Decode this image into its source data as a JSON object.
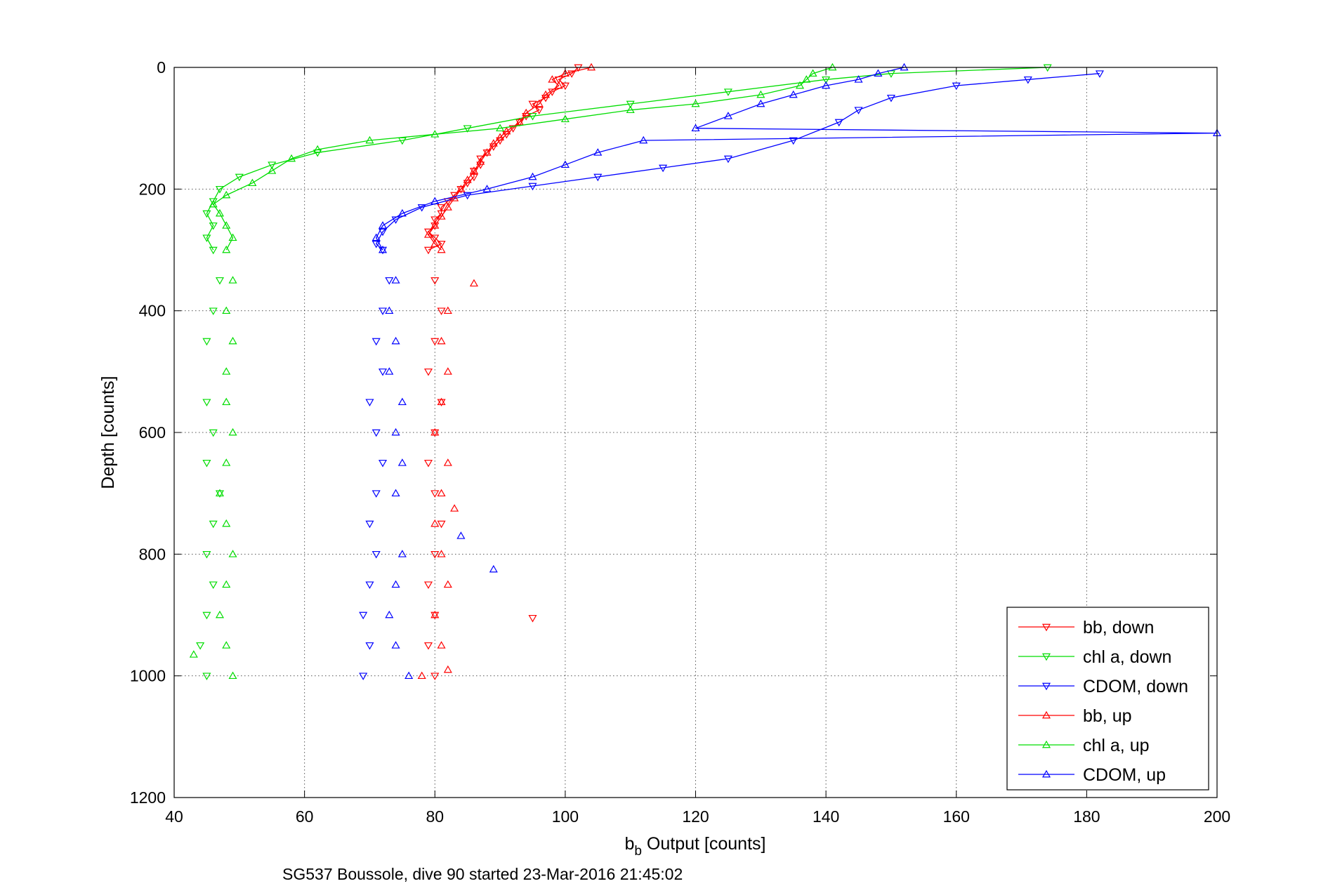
{
  "chart_data": {
    "type": "scatter",
    "xlabel": "b",
    "xlabel_sub": "b",
    "xlabel_rest": " Output [counts]",
    "ylabel": "Depth [counts]",
    "caption": "SG537 Boussole, dive 90 started 23-Mar-2016 21:45:02",
    "xlim": [
      40,
      200
    ],
    "ylim": [
      0,
      1200
    ],
    "y_reversed": true,
    "grid": true,
    "legend_position": "bottom-right",
    "x_ticks": [
      "40",
      "60",
      "80",
      "100",
      "120",
      "140",
      "160",
      "180",
      "200"
    ],
    "y_ticks": [
      "0",
      "200",
      "400",
      "600",
      "800",
      "1000",
      "1200"
    ],
    "series": [
      {
        "name": "bb, down",
        "color": "#ff0000",
        "marker": "triangle-down",
        "points": [
          [
            102,
            0
          ],
          [
            101,
            10
          ],
          [
            99,
            20
          ],
          [
            100,
            30
          ],
          [
            98,
            40
          ],
          [
            97,
            50
          ],
          [
            95,
            60
          ],
          [
            96,
            70
          ],
          [
            94,
            80
          ],
          [
            93,
            90
          ],
          [
            92,
            100
          ],
          [
            91,
            110
          ],
          [
            90,
            120
          ],
          [
            89,
            130
          ],
          [
            88,
            140
          ],
          [
            87,
            150
          ],
          [
            87,
            160
          ],
          [
            86,
            170
          ],
          [
            86,
            180
          ],
          [
            85,
            190
          ],
          [
            84,
            200
          ],
          [
            83,
            210
          ],
          [
            82,
            220
          ],
          [
            81,
            230
          ],
          [
            81,
            240
          ],
          [
            80,
            250
          ],
          [
            80,
            260
          ],
          [
            79,
            270
          ],
          [
            80,
            280
          ],
          [
            81,
            290
          ],
          [
            79,
            300
          ],
          [
            80,
            350
          ],
          [
            81,
            400
          ],
          [
            80,
            450
          ],
          [
            79,
            500
          ],
          [
            81,
            550
          ],
          [
            80,
            600
          ],
          [
            79,
            650
          ],
          [
            80,
            700
          ],
          [
            81,
            750
          ],
          [
            80,
            800
          ],
          [
            79,
            850
          ],
          [
            80,
            900
          ],
          [
            95,
            905
          ],
          [
            79,
            950
          ],
          [
            80,
            1000
          ]
        ]
      },
      {
        "name": "chl a, down",
        "color": "#00dd00",
        "marker": "triangle-down",
        "points": [
          [
            174,
            0
          ],
          [
            150,
            10
          ],
          [
            140,
            20
          ],
          [
            125,
            40
          ],
          [
            110,
            60
          ],
          [
            95,
            80
          ],
          [
            85,
            100
          ],
          [
            75,
            120
          ],
          [
            62,
            140
          ],
          [
            55,
            160
          ],
          [
            50,
            180
          ],
          [
            47,
            200
          ],
          [
            46,
            220
          ],
          [
            45,
            240
          ],
          [
            46,
            260
          ],
          [
            45,
            280
          ],
          [
            46,
            300
          ],
          [
            47,
            350
          ],
          [
            46,
            400
          ],
          [
            45,
            450
          ],
          [
            45,
            550
          ],
          [
            46,
            600
          ],
          [
            45,
            650
          ],
          [
            47,
            700
          ],
          [
            46,
            750
          ],
          [
            45,
            800
          ],
          [
            46,
            850
          ],
          [
            45,
            900
          ],
          [
            44,
            950
          ],
          [
            45,
            1000
          ]
        ]
      },
      {
        "name": "CDOM, down",
        "color": "#0000ff",
        "marker": "triangle-down",
        "points": [
          [
            182,
            10
          ],
          [
            171,
            20
          ],
          [
            160,
            30
          ],
          [
            150,
            50
          ],
          [
            145,
            70
          ],
          [
            142,
            90
          ],
          [
            135,
            120
          ],
          [
            125,
            150
          ],
          [
            115,
            165
          ],
          [
            105,
            180
          ],
          [
            95,
            195
          ],
          [
            85,
            210
          ],
          [
            78,
            230
          ],
          [
            74,
            250
          ],
          [
            72,
            270
          ],
          [
            71,
            290
          ],
          [
            72,
            300
          ],
          [
            73,
            350
          ],
          [
            72,
            400
          ],
          [
            71,
            450
          ],
          [
            72,
            500
          ],
          [
            70,
            550
          ],
          [
            71,
            600
          ],
          [
            72,
            650
          ],
          [
            71,
            700
          ],
          [
            70,
            750
          ],
          [
            71,
            800
          ],
          [
            70,
            850
          ],
          [
            69,
            900
          ],
          [
            70,
            950
          ],
          [
            69,
            1000
          ]
        ]
      },
      {
        "name": "bb, up",
        "color": "#ff0000",
        "marker": "triangle-up",
        "points": [
          [
            104,
            0
          ],
          [
            100,
            10
          ],
          [
            98,
            20
          ],
          [
            99,
            30
          ],
          [
            97,
            45
          ],
          [
            96,
            60
          ],
          [
            94,
            75
          ],
          [
            93,
            90
          ],
          [
            91,
            105
          ],
          [
            90,
            115
          ],
          [
            89,
            125
          ],
          [
            88,
            140
          ],
          [
            87,
            155
          ],
          [
            86,
            170
          ],
          [
            85,
            185
          ],
          [
            84,
            200
          ],
          [
            83,
            215
          ],
          [
            82,
            230
          ],
          [
            81,
            245
          ],
          [
            80,
            260
          ],
          [
            79,
            275
          ],
          [
            80,
            290
          ],
          [
            81,
            300
          ],
          [
            86,
            355
          ],
          [
            82,
            400
          ],
          [
            81,
            450
          ],
          [
            82,
            500
          ],
          [
            81,
            550
          ],
          [
            80,
            600
          ],
          [
            82,
            650
          ],
          [
            81,
            700
          ],
          [
            83,
            725
          ],
          [
            80,
            750
          ],
          [
            81,
            800
          ],
          [
            82,
            850
          ],
          [
            80,
            900
          ],
          [
            81,
            950
          ],
          [
            78,
            1000
          ],
          [
            82,
            990
          ]
        ]
      },
      {
        "name": "chl a, up",
        "color": "#00dd00",
        "marker": "triangle-up",
        "points": [
          [
            141,
            0
          ],
          [
            138,
            10
          ],
          [
            137,
            20
          ],
          [
            136,
            30
          ],
          [
            130,
            45
          ],
          [
            120,
            60
          ],
          [
            110,
            70
          ],
          [
            100,
            85
          ],
          [
            90,
            100
          ],
          [
            80,
            110
          ],
          [
            70,
            120
          ],
          [
            62,
            135
          ],
          [
            58,
            150
          ],
          [
            55,
            170
          ],
          [
            52,
            190
          ],
          [
            48,
            210
          ],
          [
            46,
            225
          ],
          [
            47,
            240
          ],
          [
            48,
            260
          ],
          [
            49,
            280
          ],
          [
            48,
            300
          ],
          [
            49,
            350
          ],
          [
            48,
            400
          ],
          [
            49,
            450
          ],
          [
            48,
            500
          ],
          [
            48,
            550
          ],
          [
            49,
            600
          ],
          [
            48,
            650
          ],
          [
            47,
            700
          ],
          [
            48,
            750
          ],
          [
            49,
            800
          ],
          [
            48,
            850
          ],
          [
            47,
            900
          ],
          [
            48,
            950
          ],
          [
            43,
            965
          ],
          [
            49,
            1000
          ]
        ]
      },
      {
        "name": "CDOM, up",
        "color": "#0000ff",
        "marker": "triangle-up",
        "points": [
          [
            152,
            0
          ],
          [
            148,
            10
          ],
          [
            145,
            20
          ],
          [
            140,
            30
          ],
          [
            135,
            45
          ],
          [
            130,
            60
          ],
          [
            125,
            80
          ],
          [
            120,
            100
          ],
          [
            200,
            108
          ],
          [
            112,
            120
          ],
          [
            105,
            140
          ],
          [
            100,
            160
          ],
          [
            95,
            180
          ],
          [
            88,
            200
          ],
          [
            80,
            220
          ],
          [
            75,
            240
          ],
          [
            72,
            260
          ],
          [
            71,
            280
          ],
          [
            72,
            300
          ],
          [
            74,
            350
          ],
          [
            73,
            400
          ],
          [
            74,
            450
          ],
          [
            73,
            500
          ],
          [
            75,
            550
          ],
          [
            74,
            600
          ],
          [
            75,
            650
          ],
          [
            74,
            700
          ],
          [
            84,
            770
          ],
          [
            75,
            800
          ],
          [
            89,
            825
          ],
          [
            74,
            850
          ],
          [
            73,
            900
          ],
          [
            74,
            950
          ],
          [
            76,
            1000
          ]
        ]
      }
    ]
  }
}
